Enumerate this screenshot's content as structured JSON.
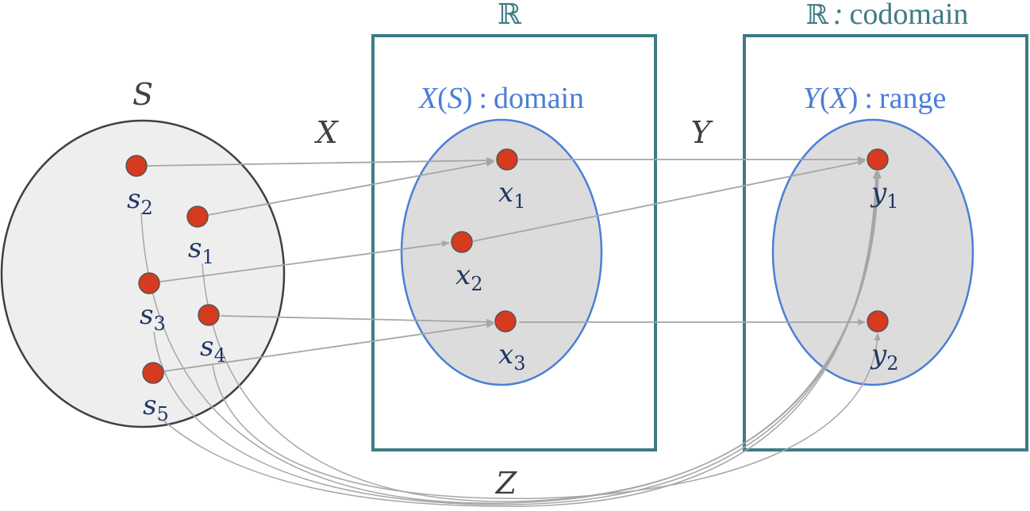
{
  "sets": {
    "sample_space": {
      "label": "S"
    },
    "real_box_1": {
      "label": "ℝ"
    },
    "real_box_2": {
      "label_symbol": "ℝ",
      "label_separator": ":",
      "label_text": "codomain"
    },
    "domain": {
      "label_func": "X",
      "label_arg": "S",
      "label_text": "domain"
    },
    "range": {
      "label_func": "Y",
      "label_arg": "X",
      "label_text": "range"
    }
  },
  "functions": {
    "X": "X",
    "Y": "Y",
    "Z": "Z"
  },
  "elements": {
    "s1": {
      "base": "s",
      "sub": "1"
    },
    "s2": {
      "base": "s",
      "sub": "2"
    },
    "s3": {
      "base": "s",
      "sub": "3"
    },
    "s4": {
      "base": "s",
      "sub": "4"
    },
    "s5": {
      "base": "s",
      "sub": "5"
    },
    "x1": {
      "base": "x",
      "sub": "1"
    },
    "x2": {
      "base": "x",
      "sub": "2"
    },
    "x3": {
      "base": "x",
      "sub": "3"
    },
    "y1": {
      "base": "y",
      "sub": "1"
    },
    "y2": {
      "base": "y",
      "sub": "2"
    }
  },
  "colors": {
    "box_border": "#3e7b84",
    "domain_label": "#4a7fd6",
    "ellipse_border": "#4a7fd6",
    "ellipse_fill": "#dcdcdc",
    "sample_fill": "#eeeeee",
    "sample_border": "#404040",
    "dot_fill": "#d63a1f",
    "element_label": "#1f3864",
    "arrow": "#a6a6a6",
    "function_label": "#404040"
  }
}
